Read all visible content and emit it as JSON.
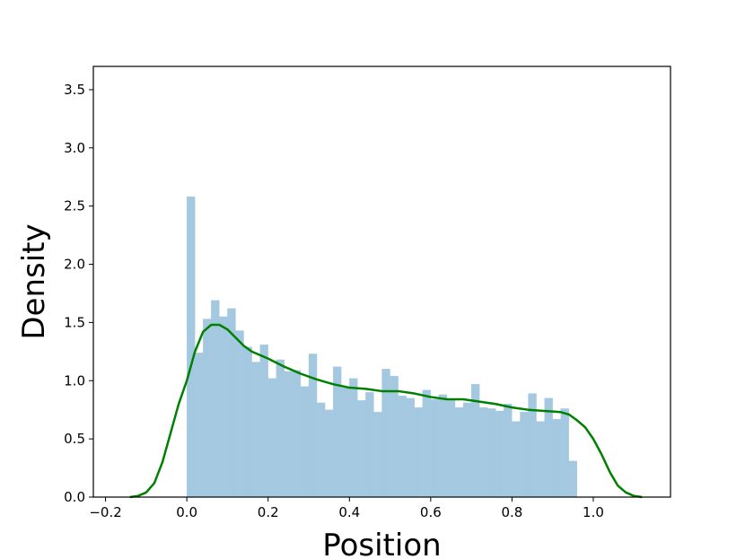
{
  "chart_data": {
    "type": "bar",
    "subtype": "histogram-with-kde",
    "xlabel": "Position",
    "ylabel": "Density",
    "xlim": [
      -0.23,
      1.19
    ],
    "ylim": [
      0.0,
      3.7
    ],
    "xticks": [
      -0.2,
      0.0,
      0.2,
      0.4,
      0.6,
      0.8,
      1.0
    ],
    "xtick_labels": [
      "−0.2",
      "0.0",
      "0.2",
      "0.4",
      "0.6",
      "0.8",
      "1.0"
    ],
    "yticks": [
      0.0,
      0.5,
      1.0,
      1.5,
      2.0,
      2.5,
      3.0,
      3.5
    ],
    "ytick_labels": [
      "0.0",
      "0.5",
      "1.0",
      "1.5",
      "2.0",
      "2.5",
      "3.0",
      "3.5"
    ],
    "grid": false,
    "legend": false,
    "colors": {
      "bars": "#a5c8e1",
      "kde": "#008000"
    },
    "histogram": {
      "bin_start": 0.0,
      "bin_width": 0.02,
      "values": [
        2.58,
        1.24,
        1.53,
        1.69,
        1.55,
        1.62,
        1.43,
        1.29,
        1.16,
        1.31,
        1.02,
        1.18,
        1.08,
        1.09,
        0.95,
        1.23,
        0.81,
        0.75,
        1.12,
        0.94,
        1.02,
        0.83,
        0.9,
        0.73,
        1.1,
        1.04,
        0.87,
        0.85,
        0.77,
        0.92,
        0.84,
        0.88,
        0.83,
        0.77,
        0.81,
        0.97,
        0.77,
        0.76,
        0.74,
        0.8,
        0.65,
        0.73,
        0.89,
        0.65,
        0.85,
        0.67,
        0.76,
        0.31
      ]
    },
    "kde": {
      "x": [
        -0.14,
        -0.12,
        -0.1,
        -0.08,
        -0.06,
        -0.04,
        -0.02,
        0.0,
        0.02,
        0.04,
        0.06,
        0.08,
        0.1,
        0.12,
        0.14,
        0.16,
        0.18,
        0.2,
        0.24,
        0.28,
        0.32,
        0.36,
        0.4,
        0.44,
        0.48,
        0.52,
        0.56,
        0.6,
        0.64,
        0.68,
        0.72,
        0.76,
        0.8,
        0.84,
        0.88,
        0.92,
        0.94,
        0.96,
        0.98,
        1.0,
        1.02,
        1.04,
        1.06,
        1.08,
        1.1,
        1.12
      ],
      "y": [
        0.0,
        0.01,
        0.04,
        0.12,
        0.3,
        0.55,
        0.8,
        1.0,
        1.25,
        1.42,
        1.48,
        1.48,
        1.44,
        1.37,
        1.3,
        1.25,
        1.22,
        1.19,
        1.12,
        1.06,
        1.01,
        0.97,
        0.94,
        0.93,
        0.91,
        0.91,
        0.89,
        0.86,
        0.84,
        0.84,
        0.82,
        0.8,
        0.77,
        0.75,
        0.74,
        0.73,
        0.71,
        0.66,
        0.6,
        0.5,
        0.37,
        0.22,
        0.1,
        0.04,
        0.01,
        0.0
      ]
    }
  }
}
